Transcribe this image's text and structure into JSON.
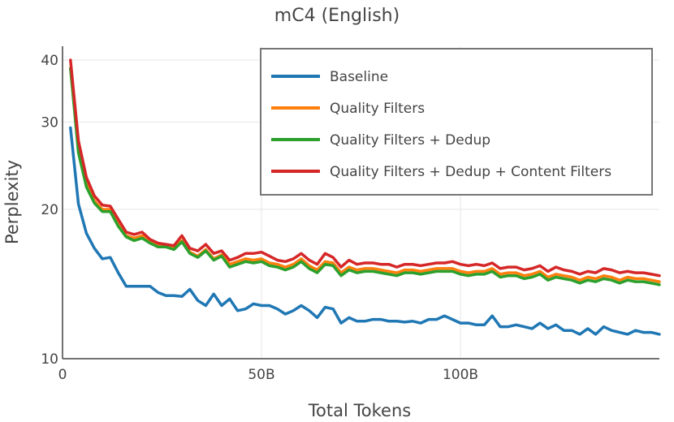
{
  "chart_data": {
    "type": "line",
    "title": "mC4 (English)",
    "xlabel": "Total Tokens",
    "ylabel": "Perplexity",
    "xlim": [
      0,
      150
    ],
    "ylim": [
      10,
      42
    ],
    "y_scale": "log",
    "x_unit": "B tokens",
    "x_ticks": [
      {
        "v": 0,
        "label": "0"
      },
      {
        "v": 50,
        "label": "50B"
      },
      {
        "v": 100,
        "label": "100B"
      }
    ],
    "y_ticks": [
      {
        "v": 10,
        "label": "10"
      },
      {
        "v": 20,
        "label": "20"
      },
      {
        "v": 30,
        "label": "30"
      },
      {
        "v": 40,
        "label": "40"
      }
    ],
    "grid": true,
    "legend": "top-right",
    "x": [
      2,
      4,
      6,
      8,
      10,
      12,
      14,
      16,
      18,
      20,
      22,
      24,
      26,
      28,
      30,
      32,
      34,
      36,
      38,
      40,
      42,
      44,
      46,
      48,
      50,
      52,
      54,
      56,
      58,
      60,
      62,
      64,
      66,
      68,
      70,
      72,
      74,
      76,
      78,
      80,
      82,
      84,
      86,
      88,
      90,
      92,
      94,
      96,
      98,
      100,
      102,
      104,
      106,
      108,
      110,
      112,
      114,
      116,
      118,
      120,
      122,
      124,
      126,
      128,
      130,
      132,
      134,
      136,
      138,
      140,
      142,
      144,
      146,
      148,
      150
    ],
    "series": [
      {
        "name": "Baseline",
        "color": "#1f77b4",
        "values": [
          29.2,
          20.5,
          17.9,
          16.7,
          15.9,
          16.0,
          14.9,
          14.0,
          14.0,
          14.0,
          14.0,
          13.6,
          13.4,
          13.4,
          13.35,
          13.8,
          13.1,
          12.8,
          13.5,
          12.8,
          13.2,
          12.5,
          12.6,
          12.9,
          12.8,
          12.8,
          12.6,
          12.3,
          12.5,
          12.8,
          12.5,
          12.1,
          12.7,
          12.6,
          11.8,
          12.1,
          11.9,
          11.9,
          12.0,
          12.0,
          11.9,
          11.9,
          11.85,
          11.9,
          11.8,
          12.0,
          12.0,
          12.2,
          12.0,
          11.8,
          11.8,
          11.7,
          11.7,
          12.2,
          11.6,
          11.6,
          11.7,
          11.6,
          11.5,
          11.8,
          11.5,
          11.7,
          11.4,
          11.4,
          11.2,
          11.5,
          11.2,
          11.6,
          11.4,
          11.3,
          11.2,
          11.4,
          11.3,
          11.3,
          11.2
        ]
      },
      {
        "name": "Quality Filters",
        "color": "#ff7f0e",
        "values": [
          38.5,
          26.5,
          22.5,
          20.8,
          20.0,
          20.0,
          18.7,
          17.7,
          17.5,
          17.7,
          17.2,
          16.9,
          16.9,
          16.7,
          17.3,
          16.4,
          16.1,
          16.6,
          15.9,
          16.2,
          15.5,
          15.7,
          15.9,
          15.8,
          15.9,
          15.6,
          15.5,
          15.3,
          15.5,
          15.9,
          15.4,
          15.1,
          15.7,
          15.6,
          14.9,
          15.3,
          15.1,
          15.2,
          15.2,
          15.1,
          15.0,
          14.9,
          15.1,
          15.1,
          15.0,
          15.1,
          15.2,
          15.2,
          15.2,
          15.0,
          14.9,
          15.0,
          15.0,
          15.2,
          14.8,
          14.9,
          14.9,
          14.7,
          14.8,
          15.0,
          14.6,
          14.8,
          14.7,
          14.6,
          14.4,
          14.6,
          14.5,
          14.7,
          14.6,
          14.4,
          14.6,
          14.5,
          14.5,
          14.4,
          14.3
        ]
      },
      {
        "name": "Quality Filters + Dedup",
        "color": "#2ca02c",
        "values": [
          38.5,
          26.0,
          22.2,
          20.6,
          19.8,
          19.8,
          18.5,
          17.6,
          17.3,
          17.5,
          17.1,
          16.8,
          16.8,
          16.6,
          17.2,
          16.3,
          16.0,
          16.5,
          15.8,
          16.1,
          15.3,
          15.5,
          15.7,
          15.6,
          15.7,
          15.4,
          15.3,
          15.1,
          15.3,
          15.7,
          15.2,
          14.9,
          15.5,
          15.4,
          14.7,
          15.1,
          14.9,
          15.0,
          15.0,
          14.9,
          14.8,
          14.7,
          14.9,
          14.9,
          14.8,
          14.9,
          15.0,
          15.0,
          15.0,
          14.8,
          14.7,
          14.8,
          14.8,
          15.0,
          14.6,
          14.7,
          14.7,
          14.5,
          14.6,
          14.8,
          14.4,
          14.6,
          14.5,
          14.4,
          14.2,
          14.4,
          14.3,
          14.5,
          14.4,
          14.2,
          14.4,
          14.3,
          14.3,
          14.2,
          14.1
        ]
      },
      {
        "name": "Quality Filters + Dedup + Content Filters",
        "color": "#d62728",
        "values": [
          40.0,
          27.5,
          23.2,
          21.3,
          20.4,
          20.3,
          19.1,
          18.0,
          17.8,
          18.0,
          17.4,
          17.1,
          17.0,
          16.9,
          17.7,
          16.7,
          16.5,
          17.0,
          16.3,
          16.5,
          15.8,
          16.0,
          16.3,
          16.3,
          16.4,
          16.1,
          15.8,
          15.7,
          15.9,
          16.3,
          15.8,
          15.5,
          16.3,
          16.0,
          15.3,
          15.8,
          15.5,
          15.6,
          15.6,
          15.5,
          15.5,
          15.3,
          15.5,
          15.5,
          15.4,
          15.5,
          15.6,
          15.6,
          15.7,
          15.5,
          15.4,
          15.5,
          15.4,
          15.6,
          15.2,
          15.3,
          15.3,
          15.1,
          15.2,
          15.4,
          15.0,
          15.3,
          15.1,
          15.0,
          14.8,
          15.0,
          14.9,
          15.2,
          15.1,
          14.9,
          15.0,
          14.9,
          14.9,
          14.8,
          14.7
        ]
      }
    ]
  }
}
